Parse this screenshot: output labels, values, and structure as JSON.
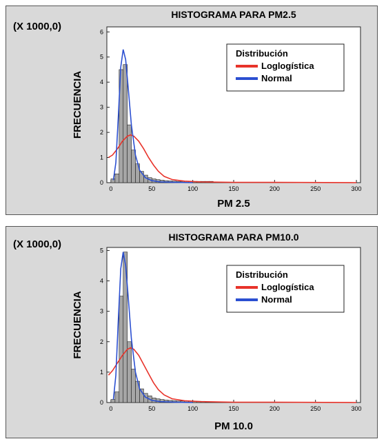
{
  "colors": {
    "background": "#d9d9d9",
    "bar": "#a6a6a6",
    "logl": "#e8332a",
    "normal": "#2b4fd1"
  },
  "chart_data": [
    {
      "type": "bar",
      "title": "HISTOGRAMA PARA PM2.5",
      "multiplier": "(X 1000,0)",
      "xlabel": "PM 2.5",
      "ylabel": "FRECUENCIA",
      "xlim": [
        -5,
        305
      ],
      "ylim": [
        0,
        6.2
      ],
      "xticks": [
        0,
        50,
        100,
        150,
        200,
        250,
        300
      ],
      "yticks": [
        0,
        1,
        2,
        3,
        4,
        5,
        6
      ],
      "bin_width": 5,
      "bins": [
        {
          "x0": 0,
          "value": 0.15
        },
        {
          "x0": 5,
          "value": 0.35
        },
        {
          "x0": 10,
          "value": 4.5
        },
        {
          "x0": 15,
          "value": 4.7
        },
        {
          "x0": 20,
          "value": 2.3
        },
        {
          "x0": 25,
          "value": 1.3
        },
        {
          "x0": 30,
          "value": 0.75
        },
        {
          "x0": 35,
          "value": 0.45
        },
        {
          "x0": 40,
          "value": 0.3
        },
        {
          "x0": 45,
          "value": 0.2
        },
        {
          "x0": 50,
          "value": 0.15
        },
        {
          "x0": 55,
          "value": 0.12
        },
        {
          "x0": 60,
          "value": 0.1
        },
        {
          "x0": 65,
          "value": 0.08
        },
        {
          "x0": 70,
          "value": 0.07
        },
        {
          "x0": 75,
          "value": 0.06
        },
        {
          "x0": 80,
          "value": 0.05
        },
        {
          "x0": 85,
          "value": 0.05
        },
        {
          "x0": 90,
          "value": 0.05
        },
        {
          "x0": 95,
          "value": 0.05
        },
        {
          "x0": 100,
          "value": 0.05
        },
        {
          "x0": 105,
          "value": 0.05
        },
        {
          "x0": 110,
          "value": 0.05
        },
        {
          "x0": 115,
          "value": 0.05
        },
        {
          "x0": 120,
          "value": 0.05
        }
      ],
      "curves": [
        {
          "name": "Loglogística",
          "color": "#e8332a",
          "points": [
            [
              -3,
              1.0
            ],
            [
              2,
              1.1
            ],
            [
              8,
              1.35
            ],
            [
              14,
              1.65
            ],
            [
              20,
              1.85
            ],
            [
              24,
              1.9
            ],
            [
              28,
              1.85
            ],
            [
              34,
              1.65
            ],
            [
              40,
              1.35
            ],
            [
              46,
              1.0
            ],
            [
              52,
              0.7
            ],
            [
              58,
              0.45
            ],
            [
              65,
              0.25
            ],
            [
              75,
              0.12
            ],
            [
              90,
              0.06
            ],
            [
              110,
              0.03
            ],
            [
              150,
              0.01
            ],
            [
              200,
              0.01
            ],
            [
              300,
              0.0
            ]
          ]
        },
        {
          "name": "Normal",
          "color": "#2b4fd1",
          "points": [
            [
              3,
              0.1
            ],
            [
              6,
              0.8
            ],
            [
              9,
              2.6
            ],
            [
              12,
              4.6
            ],
            [
              15,
              5.3
            ],
            [
              18,
              4.9
            ],
            [
              21,
              3.8
            ],
            [
              25,
              2.3
            ],
            [
              30,
              1.1
            ],
            [
              35,
              0.5
            ],
            [
              42,
              0.2
            ],
            [
              50,
              0.08
            ],
            [
              60,
              0.03
            ],
            [
              80,
              0.01
            ],
            [
              100,
              0.0
            ]
          ]
        }
      ],
      "legend": {
        "title": "Distribución",
        "placement": "top-right"
      }
    },
    {
      "type": "bar",
      "title": "HISTOGRAMA PARA PM10.0",
      "multiplier": "(X 1000,0)",
      "xlabel": "PM 10.0",
      "ylabel": "FRECUENCIA",
      "xlim": [
        -5,
        305
      ],
      "ylim": [
        0,
        5.1
      ],
      "xticks": [
        0,
        50,
        100,
        150,
        200,
        250,
        300
      ],
      "yticks": [
        0,
        1,
        2,
        3,
        4,
        5
      ],
      "bin_width": 5,
      "bins": [
        {
          "x0": 0,
          "value": 0.1
        },
        {
          "x0": 5,
          "value": 0.35
        },
        {
          "x0": 10,
          "value": 3.5
        },
        {
          "x0": 15,
          "value": 4.95
        },
        {
          "x0": 20,
          "value": 2.0
        },
        {
          "x0": 25,
          "value": 1.1
        },
        {
          "x0": 30,
          "value": 0.7
        },
        {
          "x0": 35,
          "value": 0.45
        },
        {
          "x0": 40,
          "value": 0.3
        },
        {
          "x0": 45,
          "value": 0.22
        },
        {
          "x0": 50,
          "value": 0.15
        },
        {
          "x0": 55,
          "value": 0.12
        },
        {
          "x0": 60,
          "value": 0.1
        },
        {
          "x0": 65,
          "value": 0.08
        },
        {
          "x0": 70,
          "value": 0.07
        },
        {
          "x0": 75,
          "value": 0.06
        },
        {
          "x0": 80,
          "value": 0.05
        },
        {
          "x0": 85,
          "value": 0.05
        },
        {
          "x0": 90,
          "value": 0.05
        },
        {
          "x0": 95,
          "value": 0.04
        },
        {
          "x0": 100,
          "value": 0.04
        },
        {
          "x0": 105,
          "value": 0.04
        },
        {
          "x0": 110,
          "value": 0.04
        }
      ],
      "curves": [
        {
          "name": "Loglogística",
          "color": "#e8332a",
          "points": [
            [
              -3,
              0.9
            ],
            [
              2,
              1.05
            ],
            [
              8,
              1.3
            ],
            [
              14,
              1.55
            ],
            [
              20,
              1.75
            ],
            [
              24,
              1.8
            ],
            [
              28,
              1.75
            ],
            [
              34,
              1.55
            ],
            [
              40,
              1.25
            ],
            [
              46,
              0.95
            ],
            [
              52,
              0.65
            ],
            [
              58,
              0.42
            ],
            [
              65,
              0.25
            ],
            [
              75,
              0.12
            ],
            [
              90,
              0.06
            ],
            [
              110,
              0.03
            ],
            [
              150,
              0.01
            ],
            [
              200,
              0.01
            ],
            [
              300,
              0.0
            ]
          ]
        },
        {
          "name": "Normal",
          "color": "#2b4fd1",
          "points": [
            [
              3,
              0.1
            ],
            [
              6,
              0.9
            ],
            [
              9,
              2.7
            ],
            [
              12,
              4.4
            ],
            [
              15,
              4.95
            ],
            [
              18,
              4.5
            ],
            [
              21,
              3.5
            ],
            [
              25,
              2.1
            ],
            [
              30,
              1.0
            ],
            [
              35,
              0.45
            ],
            [
              42,
              0.18
            ],
            [
              50,
              0.07
            ],
            [
              60,
              0.03
            ],
            [
              80,
              0.01
            ],
            [
              100,
              0.0
            ]
          ]
        }
      ],
      "legend": {
        "title": "Distribución",
        "placement": "top-right"
      }
    }
  ]
}
